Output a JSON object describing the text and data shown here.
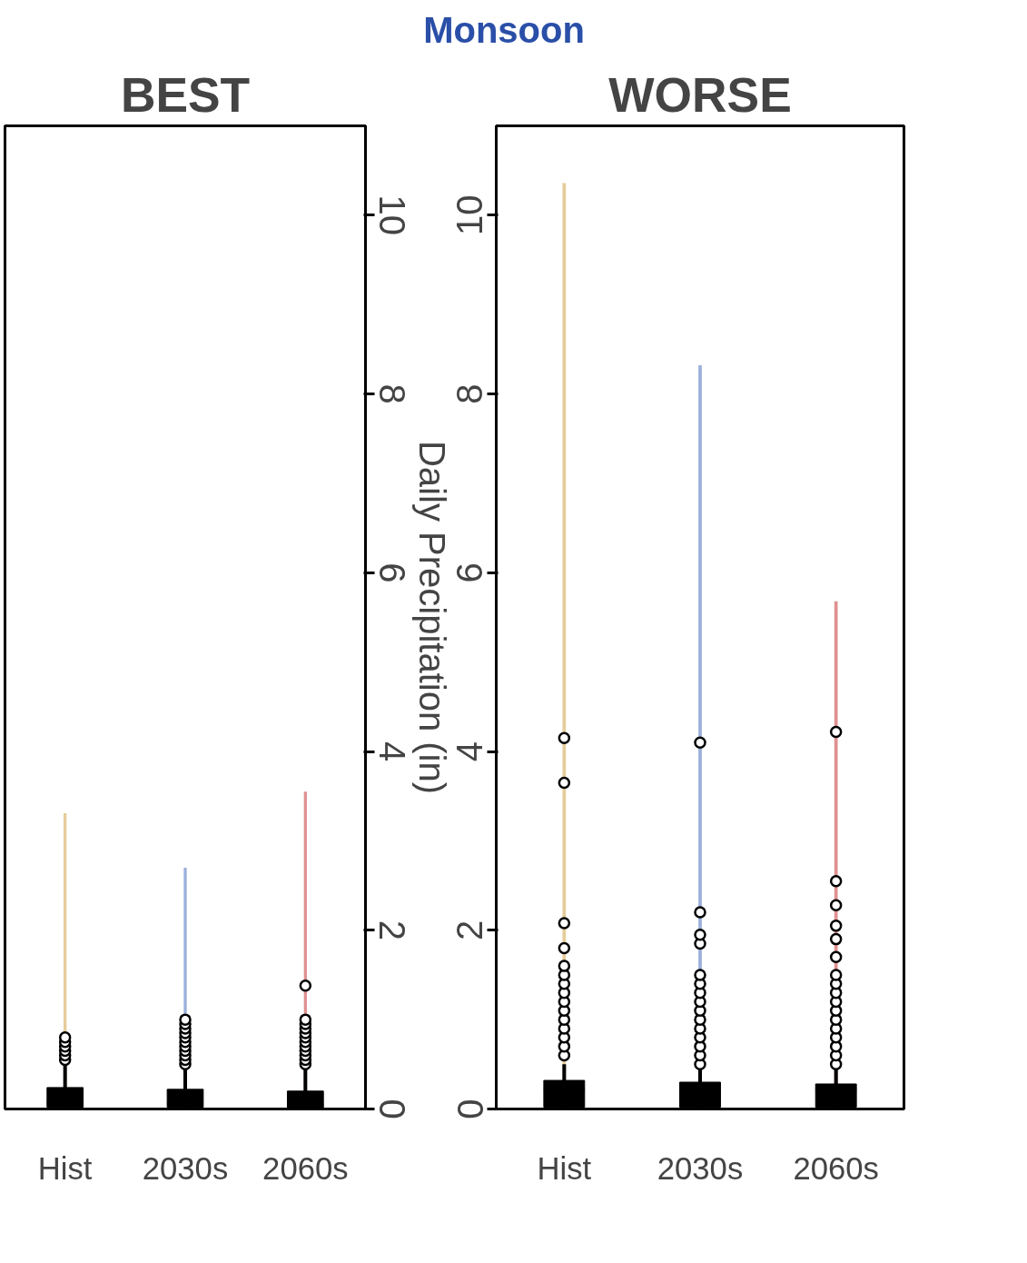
{
  "chart_data": [
    {
      "type": "box",
      "title": "BEST",
      "annotations": [
        "Monsoon"
      ],
      "categories": [
        "Hist",
        "2030s",
        "2060s"
      ],
      "ylim": [
        0,
        11
      ],
      "yticks": [
        0,
        2,
        4,
        6,
        8,
        10
      ],
      "ylabel": "Daily Precipitation (in)",
      "grid": false,
      "series": [
        {
          "type": "bar",
          "colors": [
            "#e6cc9a",
            "#9bb0dc",
            "#e09090"
          ],
          "values": [
            3.31,
            2.7,
            3.55
          ]
        },
        {
          "type": "box",
          "color": "#000000",
          "boxes": [
            {
              "low": 0,
              "q1": 0.02,
              "median": 0.08,
              "q3": 0.24,
              "high": 0.5,
              "outliers": [
                0.55,
                0.6,
                0.65,
                0.7,
                0.75,
                0.8
              ]
            },
            {
              "low": 0,
              "q1": 0.02,
              "median": 0.06,
              "q3": 0.22,
              "high": 0.45,
              "outliers": [
                0.5,
                0.55,
                0.6,
                0.65,
                0.7,
                0.75,
                0.8,
                0.85,
                0.9,
                0.95,
                1.0
              ]
            },
            {
              "low": 0,
              "q1": 0.01,
              "median": 0.05,
              "q3": 0.2,
              "high": 0.45,
              "outliers": [
                0.5,
                0.55,
                0.6,
                0.65,
                0.7,
                0.75,
                0.8,
                0.85,
                0.9,
                0.95,
                1.0,
                1.38
              ]
            }
          ]
        }
      ]
    },
    {
      "type": "box",
      "title": "WORSE",
      "categories": [
        "Hist",
        "2030s",
        "2060s"
      ],
      "ylim": [
        0,
        11
      ],
      "yticks": [
        0,
        2,
        4,
        6,
        8,
        10
      ],
      "grid": false,
      "series": [
        {
          "type": "bar",
          "colors": [
            "#e6cc9a",
            "#9bb0dc",
            "#e09090"
          ],
          "values": [
            10.36,
            8.32,
            5.68
          ]
        },
        {
          "type": "box",
          "color": "#000000",
          "boxes": [
            {
              "low": 0,
              "q1": 0.02,
              "median": 0.22,
              "q3": 0.32,
              "high": 0.5,
              "outliers": [
                0.6,
                0.7,
                0.8,
                0.9,
                1.0,
                1.1,
                1.2,
                1.3,
                1.4,
                1.5,
                1.6,
                1.8,
                2.08,
                3.65,
                4.15
              ]
            },
            {
              "low": 0,
              "q1": 0.02,
              "median": 0.2,
              "q3": 0.3,
              "high": 0.45,
              "outliers": [
                0.5,
                0.6,
                0.7,
                0.8,
                0.9,
                1.0,
                1.1,
                1.2,
                1.3,
                1.4,
                1.5,
                1.85,
                1.95,
                2.2,
                4.1
              ]
            },
            {
              "low": 0,
              "q1": 0.02,
              "median": 0.22,
              "q3": 0.28,
              "high": 0.45,
              "outliers": [
                0.5,
                0.6,
                0.7,
                0.8,
                0.9,
                1.0,
                1.1,
                1.2,
                1.3,
                1.4,
                1.5,
                1.7,
                1.9,
                2.05,
                2.28,
                2.55,
                4.22
              ]
            }
          ]
        }
      ]
    }
  ]
}
